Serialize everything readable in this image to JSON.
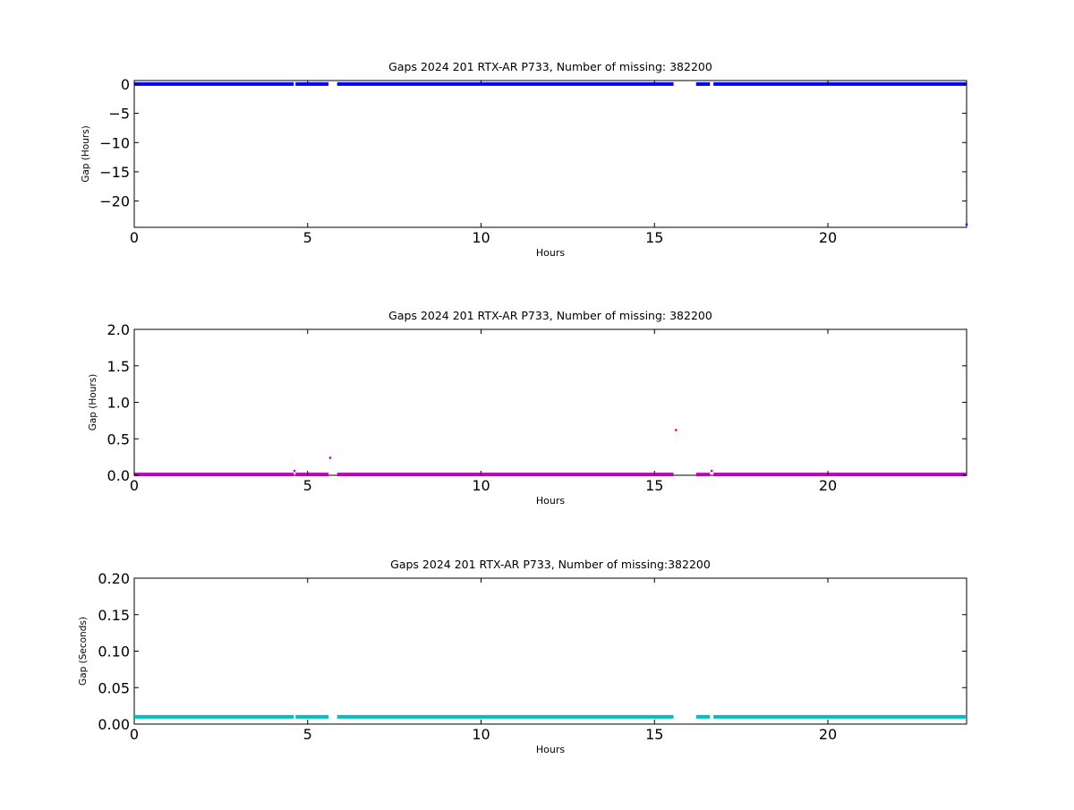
{
  "chart_data": [
    {
      "type": "scatter",
      "title": "Gaps 2024 201 RTX-AR  P733, Number of missing: 382200",
      "xlabel": "Hours",
      "ylabel": "Gap (Hours)",
      "xlim": [
        0,
        24
      ],
      "ylim": [
        -24.5,
        0.6
      ],
      "xticks": [
        0,
        5,
        10,
        15,
        20
      ],
      "xtick_labels": [
        "0",
        "5",
        "10",
        "15",
        "20"
      ],
      "yticks": [
        0,
        -5,
        -10,
        -15,
        -20
      ],
      "ytick_labels": [
        "0",
        "−5",
        "−10",
        "−15",
        "−20"
      ],
      "grid": false,
      "color": "#0000ff",
      "series": [
        {
          "segments": [
            [
              0.0,
              4.6,
              0.0
            ],
            [
              4.65,
              5.6,
              0.0
            ],
            [
              5.85,
              15.55,
              0.0
            ],
            [
              16.2,
              16.6,
              0.0
            ],
            [
              16.7,
              24.0,
              0.0
            ]
          ],
          "points": [
            [
              24.0,
              -24.0
            ]
          ]
        }
      ]
    },
    {
      "type": "scatter",
      "title": "Gaps 2024 201 RTX-AR  P733, Number of missing: 382200",
      "xlabel": "Hours",
      "ylabel": "Gap (Hours)",
      "xlim": [
        0,
        24
      ],
      "ylim": [
        0,
        2.0
      ],
      "xticks": [
        0,
        5,
        10,
        15,
        20
      ],
      "xtick_labels": [
        "0",
        "5",
        "10",
        "15",
        "20"
      ],
      "yticks": [
        0,
        0.5,
        1.0,
        1.5,
        2.0
      ],
      "ytick_labels": [
        "0.0",
        "0.5",
        "1.0",
        "1.5",
        "2.0"
      ],
      "grid": false,
      "color": "#c000c0",
      "series": [
        {
          "segments": [
            [
              0.0,
              4.6,
              0.01
            ],
            [
              4.65,
              5.6,
              0.01
            ],
            [
              5.85,
              15.55,
              0.01
            ],
            [
              16.2,
              16.6,
              0.01
            ],
            [
              16.7,
              24.0,
              0.01
            ]
          ],
          "points": [
            [
              4.62,
              0.06
            ],
            [
              5.65,
              0.24
            ],
            [
              15.62,
              0.62
            ],
            [
              16.65,
              0.06
            ]
          ]
        }
      ]
    },
    {
      "type": "scatter",
      "title": "Gaps 2024 201 RTX-AR  P733, Number of missing:382200",
      "xlabel": "Hours",
      "ylabel": "Gap (Seconds)",
      "xlim": [
        0,
        24
      ],
      "ylim": [
        0,
        0.2
      ],
      "xticks": [
        0,
        5,
        10,
        15,
        20
      ],
      "xtick_labels": [
        "0",
        "5",
        "10",
        "15",
        "20"
      ],
      "yticks": [
        0,
        0.05,
        0.1,
        0.15,
        0.2
      ],
      "ytick_labels": [
        "0.00",
        "0.05",
        "0.10",
        "0.15",
        "0.20"
      ],
      "grid": false,
      "color": "#00bfbf",
      "series": [
        {
          "segments": [
            [
              0.0,
              4.6,
              0.01
            ],
            [
              4.65,
              5.6,
              0.01
            ],
            [
              5.85,
              15.55,
              0.01
            ],
            [
              16.2,
              16.6,
              0.01
            ],
            [
              16.7,
              24.0,
              0.01
            ]
          ],
          "points": []
        }
      ]
    }
  ]
}
